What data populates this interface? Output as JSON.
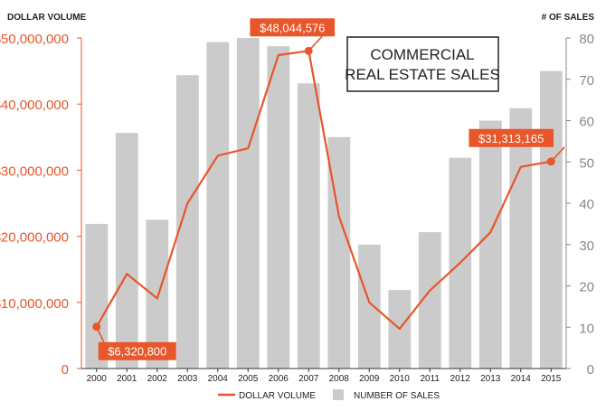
{
  "chart_data": {
    "type": "bar+line",
    "title_line1": "COMMERCIAL",
    "title_line2": "REAL ESTATE SALES",
    "left_axis_title": "DOLLAR VOLUME",
    "right_axis_title": "# OF SALES",
    "categories": [
      "2000",
      "2001",
      "2002",
      "2003",
      "2004",
      "2005",
      "2006",
      "2007",
      "2008",
      "2009",
      "2010",
      "2011",
      "2012",
      "2013",
      "2014",
      "2015"
    ],
    "left_ticks": [
      "0",
      "$10,000,000",
      "$20,000,000",
      "$30,000,000",
      "$40,000,000",
      "$50,000,000"
    ],
    "right_ticks": [
      "0",
      "10",
      "20",
      "30",
      "40",
      "50",
      "60",
      "70",
      "80"
    ],
    "left_ylim": [
      0,
      50000000
    ],
    "right_ylim": [
      0,
      80
    ],
    "series": [
      {
        "name": "NUMBER OF SALES",
        "kind": "bar",
        "axis": "right",
        "values": [
          35,
          57,
          36,
          71,
          79,
          80,
          78,
          69,
          56,
          30,
          19,
          33,
          51,
          60,
          63,
          72
        ]
      },
      {
        "name": "DOLLAR VOLUME",
        "kind": "line",
        "axis": "left",
        "values": [
          6320800,
          14300000,
          10600000,
          25000000,
          32200000,
          33300000,
          47400000,
          48044576,
          23000000,
          10000000,
          6000000,
          11800000,
          16000000,
          20600000,
          30500000,
          31313165
        ]
      }
    ],
    "callouts": [
      {
        "index": 0,
        "label": "$6,320,800"
      },
      {
        "index": 7,
        "label": "$48,044,576"
      },
      {
        "index": 15,
        "label": "$31,313,165"
      }
    ],
    "legend": [
      {
        "label": "DOLLAR VOLUME",
        "kind": "line"
      },
      {
        "label": "NUMBER OF SALES",
        "kind": "bar"
      }
    ],
    "legend_position": "bottom",
    "colors": {
      "line": "#e8562a",
      "bar": "#cbcbcb",
      "left_axis": "#e8562a",
      "right_axis": "#888888",
      "text": "#222222"
    }
  }
}
